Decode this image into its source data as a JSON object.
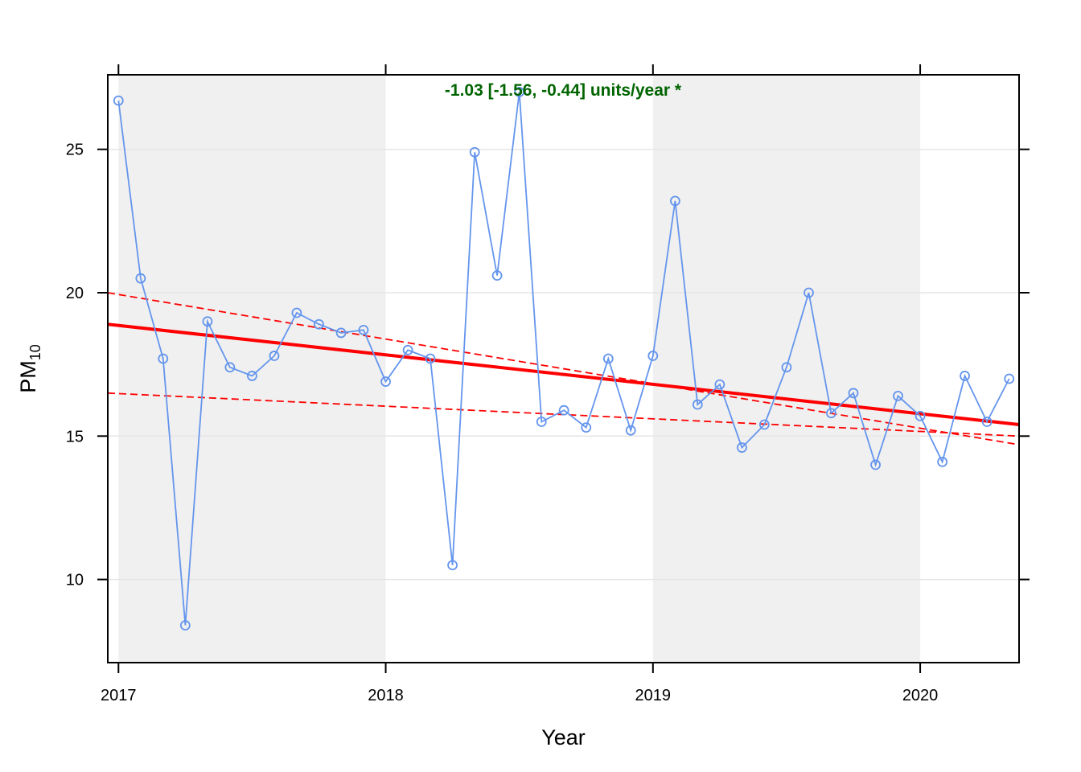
{
  "chart_data": {
    "type": "line",
    "xlabel": "Year",
    "ylabel": "PM",
    "ylabel_subscript": "10",
    "annotation": "-1.03 [-1.56, -0.44] units/year *",
    "xlim": [
      2016.96,
      2020.37
    ],
    "ylim": [
      7.1,
      27.6
    ],
    "x_ticks": [
      2017,
      2018,
      2019,
      2020
    ],
    "x_tick_labels": [
      "2017",
      "2018",
      "2019",
      "2020"
    ],
    "y_ticks": [
      10,
      15,
      20,
      25
    ],
    "y_tick_labels": [
      "10",
      "15",
      "20",
      "25"
    ],
    "grid": true,
    "shaded_year_bands": [
      [
        2017,
        2018
      ],
      [
        2019,
        2020
      ]
    ],
    "colors": {
      "series": "#6495ED",
      "trend": "#FF0000",
      "annotation": "#006400",
      "band": "#F0F0F0",
      "grid": "#E6E6E6"
    },
    "series": [
      {
        "x": [
          2017.0,
          2017.083,
          2017.167,
          2017.25,
          2017.333,
          2017.417,
          2017.5,
          2017.583,
          2017.667,
          2017.75,
          2017.833,
          2017.917,
          2018.0,
          2018.083,
          2018.167,
          2018.25,
          2018.333,
          2018.417,
          2018.5,
          2018.583,
          2018.667,
          2018.75,
          2018.833,
          2018.917,
          2019.0,
          2019.083,
          2019.167,
          2019.25,
          2019.333,
          2019.417,
          2019.5,
          2019.583,
          2019.667,
          2019.75,
          2019.833,
          2019.917,
          2020.0,
          2020.083,
          2020.167,
          2020.25,
          2020.333
        ],
        "values": [
          26.7,
          20.5,
          17.7,
          8.4,
          19.0,
          17.4,
          17.1,
          17.8,
          19.3,
          18.9,
          18.6,
          18.7,
          16.9,
          18.0,
          17.7,
          10.5,
          24.9,
          20.6,
          27.0,
          15.5,
          15.9,
          15.3,
          17.7,
          15.2,
          17.8,
          23.2,
          16.1,
          16.8,
          14.6,
          15.4,
          17.4,
          20.0,
          15.8,
          16.5,
          14.0,
          16.4,
          15.7,
          14.1,
          17.1,
          15.5,
          17.0
        ]
      }
    ],
    "trend": {
      "x": [
        2016.96,
        2020.37
      ],
      "y": [
        18.9,
        15.4
      ]
    },
    "trend_lower": {
      "x": [
        2016.96,
        2020.37
      ],
      "y": [
        20.0,
        14.7
      ]
    },
    "trend_upper": {
      "x": [
        2016.96,
        2020.37
      ],
      "y": [
        16.5,
        15.0
      ]
    }
  }
}
